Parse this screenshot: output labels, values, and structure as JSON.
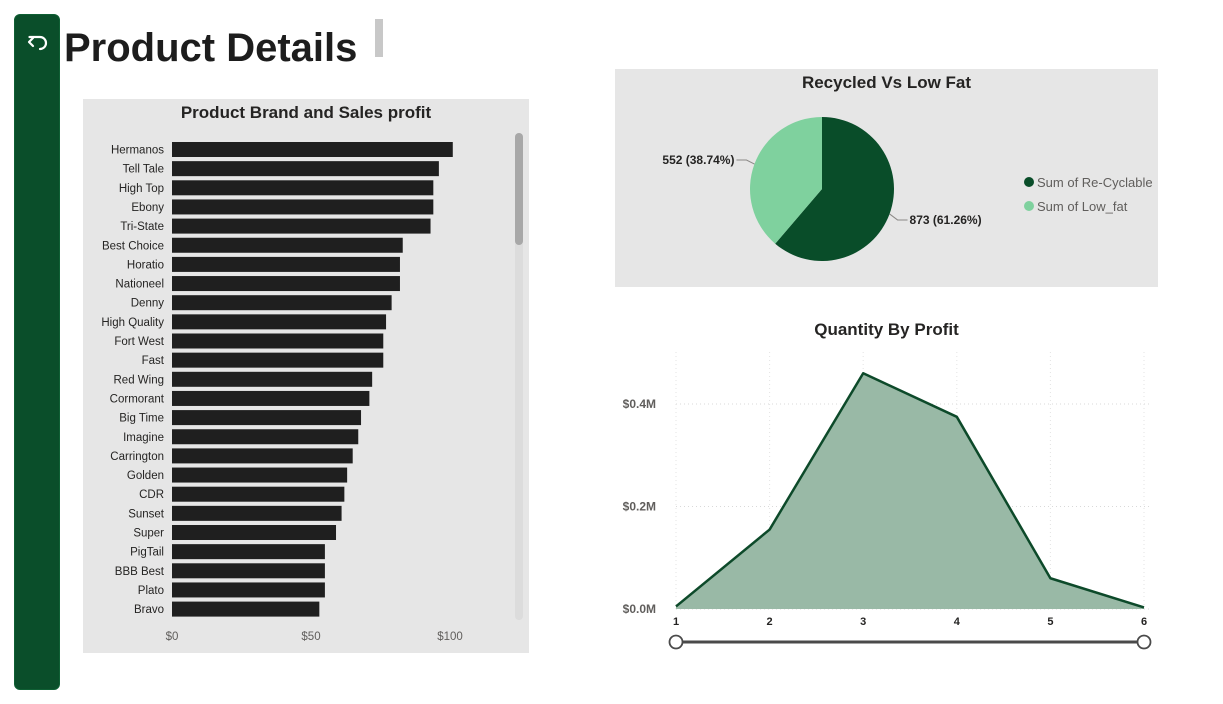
{
  "page": {
    "title": "Product Details"
  },
  "colors": {
    "sidebar": "#0a4e2a",
    "bar": "#1f1f1f",
    "pie_recyclable": "#094d29",
    "pie_lowfat": "#7fd19e",
    "area_fill": "#99b9a6",
    "area_line": "#0d4a2a"
  },
  "sidebar": {
    "back_icon": "back-arrow-icon"
  },
  "chart_data": [
    {
      "type": "bar",
      "orientation": "horizontal",
      "title": "Product Brand and Sales profit",
      "categories": [
        "Hermanos",
        "Tell Tale",
        "High Top",
        "Ebony",
        "Tri-State",
        "Best Choice",
        "Horatio",
        "Nationeel",
        "Denny",
        "High Quality",
        "Fort West",
        "Fast",
        "Red Wing",
        "Cormorant",
        "Big Time",
        "Imagine",
        "Carrington",
        "Golden",
        "CDR",
        "Sunset",
        "Super",
        "PigTail",
        "BBB Best",
        "Plato",
        "Bravo"
      ],
      "values": [
        101,
        96,
        94,
        94,
        93,
        83,
        82,
        82,
        79,
        77,
        76,
        76,
        72,
        71,
        68,
        67,
        65,
        63,
        62,
        61,
        59,
        55,
        55,
        55,
        53
      ],
      "xlim": [
        0,
        128
      ],
      "xticks": [
        "$0",
        "$50",
        "$100"
      ],
      "xtick_values": [
        0,
        50,
        100
      ],
      "grid": false,
      "scrollable": true
    },
    {
      "type": "pie",
      "title": "Recycled Vs Low Fat",
      "slices": [
        {
          "name": "Sum of Re-Cyclable",
          "value": 873,
          "label": "873 (61.26%)"
        },
        {
          "name": "Sum of Low_fat",
          "value": 552,
          "label": "552 (38.74%)"
        }
      ],
      "legend": "right"
    },
    {
      "type": "area",
      "title": "Quantity By Profit",
      "x": [
        1,
        2,
        3,
        4,
        5,
        6
      ],
      "y": [
        0.005,
        0.155,
        0.46,
        0.375,
        0.06,
        0.003
      ],
      "xticks": [
        "1",
        "2",
        "3",
        "4",
        "5",
        "6"
      ],
      "yticks": [
        "$0.0M",
        "$0.2M",
        "$0.4M"
      ],
      "ytick_values": [
        0,
        0.2,
        0.4
      ],
      "ylim": [
        0,
        0.5
      ],
      "grid": true,
      "range_slider": [
        1,
        6
      ]
    }
  ]
}
